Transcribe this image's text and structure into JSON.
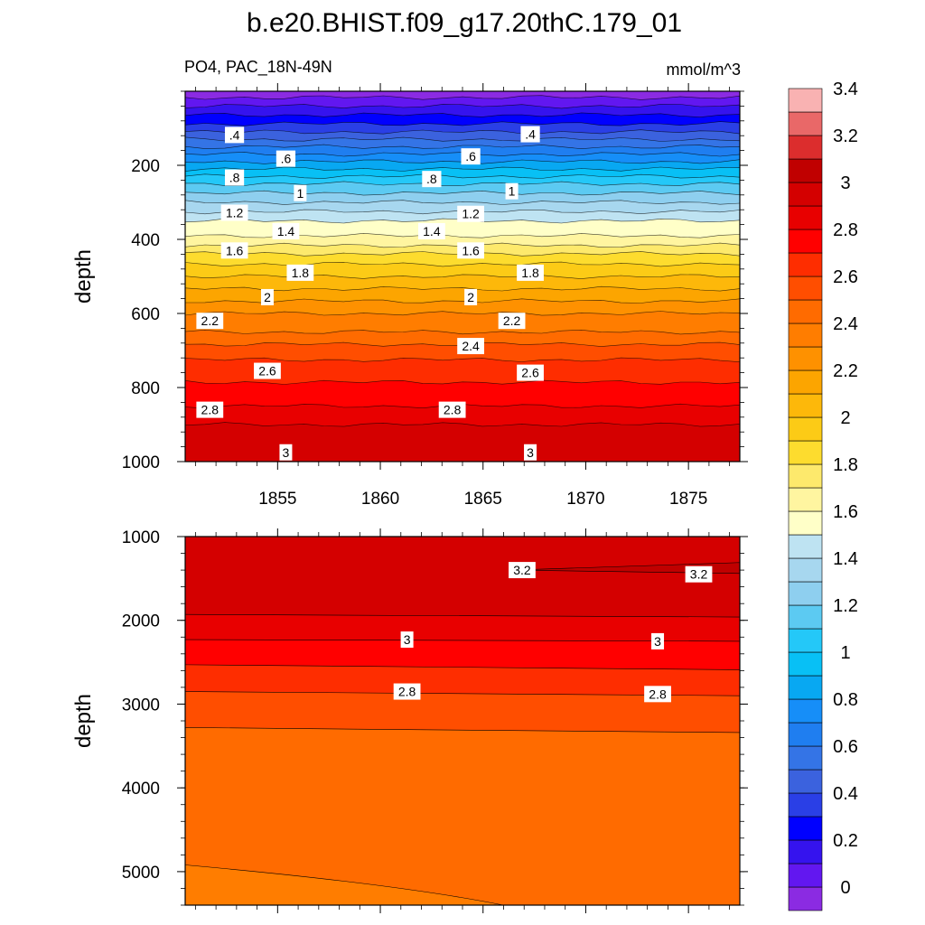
{
  "title": "b.e20.BHIST.f09_g17.20thC.179_01",
  "subtitle_left": "PO4, PAC_18N-49N",
  "subtitle_right": "mmol/m^3",
  "chart_data": [
    {
      "type": "heatmap",
      "panel": "upper",
      "ylabel": "depth",
      "ylim": [
        0,
        1000
      ],
      "yticks": [
        200,
        400,
        600,
        800,
        1000
      ],
      "xlim": [
        1850.5,
        1877.5
      ],
      "xticks": [
        1855,
        1860,
        1865,
        1870,
        1875
      ],
      "contour_levels": [
        0.1,
        0.2,
        0.3,
        0.4,
        0.5,
        0.6,
        0.7,
        0.8,
        0.9,
        1.0,
        1.1,
        1.2,
        1.3,
        1.4,
        1.5,
        1.6,
        1.7,
        1.8,
        1.9,
        2.0,
        2.1,
        2.2,
        2.3,
        2.4,
        2.5,
        2.6,
        2.7,
        2.8,
        2.9,
        3.0,
        3.1
      ],
      "profile": {
        "depth": [
          5,
          40,
          100,
          150,
          200,
          250,
          300,
          350,
          390,
          405,
          450,
          500,
          550,
          600,
          650,
          700,
          750,
          800,
          850,
          900,
          950,
          1000
        ],
        "value": [
          0.05,
          0.2,
          0.45,
          0.7,
          0.95,
          1.2,
          1.4,
          1.6,
          1.7,
          1.75,
          1.95,
          2.1,
          2.25,
          2.4,
          2.5,
          2.65,
          2.75,
          2.82,
          2.9,
          3.0,
          3.05,
          3.08
        ]
      },
      "contour_labels": [
        {
          "text": ".4",
          "year": 1852.9,
          "depth": 118
        },
        {
          "text": ".4",
          "year": 1867.3,
          "depth": 116
        },
        {
          "text": ".6",
          "year": 1855.4,
          "depth": 182
        },
        {
          "text": ".6",
          "year": 1864.4,
          "depth": 176
        },
        {
          "text": ".8",
          "year": 1852.9,
          "depth": 233
        },
        {
          "text": ".8",
          "year": 1862.5,
          "depth": 237
        },
        {
          "text": "1",
          "year": 1856.1,
          "depth": 275
        },
        {
          "text": "1",
          "year": 1866.4,
          "depth": 270
        },
        {
          "text": "1.2",
          "year": 1852.9,
          "depth": 328
        },
        {
          "text": "1.2",
          "year": 1864.4,
          "depth": 331
        },
        {
          "text": "1.4",
          "year": 1855.4,
          "depth": 378
        },
        {
          "text": "1.4",
          "year": 1862.5,
          "depth": 378
        },
        {
          "text": "1.6",
          "year": 1852.9,
          "depth": 430
        },
        {
          "text": "1.6",
          "year": 1864.4,
          "depth": 430
        },
        {
          "text": "1.8",
          "year": 1856.1,
          "depth": 490
        },
        {
          "text": "1.8",
          "year": 1867.3,
          "depth": 490
        },
        {
          "text": "2",
          "year": 1854.5,
          "depth": 556
        },
        {
          "text": "2",
          "year": 1864.4,
          "depth": 556
        },
        {
          "text": "2.2",
          "year": 1851.7,
          "depth": 620
        },
        {
          "text": "2.2",
          "year": 1866.4,
          "depth": 620
        },
        {
          "text": "2.4",
          "year": 1864.4,
          "depth": 688
        },
        {
          "text": "2.6",
          "year": 1854.5,
          "depth": 755
        },
        {
          "text": "2.6",
          "year": 1867.3,
          "depth": 760
        },
        {
          "text": "2.8",
          "year": 1851.7,
          "depth": 860
        },
        {
          "text": "2.8",
          "year": 1863.5,
          "depth": 860
        },
        {
          "text": "3",
          "year": 1855.4,
          "depth": 975
        },
        {
          "text": "3",
          "year": 1867.3,
          "depth": 975
        }
      ]
    },
    {
      "type": "heatmap",
      "panel": "lower",
      "ylabel": "depth",
      "ylim": [
        1000,
        5400
      ],
      "yticks": [
        1000,
        2000,
        3000,
        4000,
        5000
      ],
      "xlim": [
        1850.5,
        1877.5
      ],
      "contour_lines": [
        {
          "level": 3.2,
          "year_start": 1866.5,
          "depth_start": 1400,
          "year_end": 1877.5,
          "depth_end": 1350
        },
        {
          "level": 3.1,
          "depth_left": 1930,
          "depth_right": 1960
        },
        {
          "level": 3.0,
          "depth_left": 2230,
          "depth_right": 2250
        },
        {
          "level": 2.9,
          "depth_left": 2530,
          "depth_right": 2590
        },
        {
          "level": 2.8,
          "depth_left": 2850,
          "depth_right": 2900
        },
        {
          "level": 2.7,
          "depth_left": 3280,
          "depth_right": 3340
        },
        {
          "level": 2.6,
          "depth_left": 4920,
          "depth_right": 5400
        }
      ],
      "contour_labels": [
        {
          "text": "3.2",
          "year": 1866.9,
          "depth": 1400
        },
        {
          "text": "3.2",
          "year": 1875.5,
          "depth": 1450
        },
        {
          "text": "3",
          "year": 1861.3,
          "depth": 2230
        },
        {
          "text": "3",
          "year": 1873.5,
          "depth": 2250
        },
        {
          "text": "2.8",
          "year": 1861.3,
          "depth": 2850
        },
        {
          "text": "2.8",
          "year": 1873.5,
          "depth": 2880
        }
      ]
    }
  ],
  "colorbar": {
    "labels": [
      "0",
      "0.2",
      "0.4",
      "0.6",
      "0.8",
      "1",
      "1.2",
      "1.4",
      "1.6",
      "1.8",
      "2",
      "2.2",
      "2.4",
      "2.6",
      "2.8",
      "3",
      "3.2",
      "3.4"
    ],
    "colors": [
      "#8b2be2",
      "#6217f0",
      "#3513ee",
      "#0000ff",
      "#2a3fe6",
      "#3b62de",
      "#3474e6",
      "#1f7ef0",
      "#168ef8",
      "#08a8f2",
      "#08c0f5",
      "#24c8f8",
      "#5ccaf2",
      "#8ecfef",
      "#a7d7ef",
      "#bee3f2",
      "#ffffc8",
      "#fff5a0",
      "#fde96c",
      "#fddc2e",
      "#fccb16",
      "#fdb80a",
      "#fca500",
      "#fe9100",
      "#ff7d00",
      "#ff6b00",
      "#ff4e00",
      "#fe2d00",
      "#ff0000",
      "#e80000",
      "#d40000",
      "#c00000",
      "#dc2d2d",
      "#e96868",
      "#f9b2b2"
    ]
  }
}
